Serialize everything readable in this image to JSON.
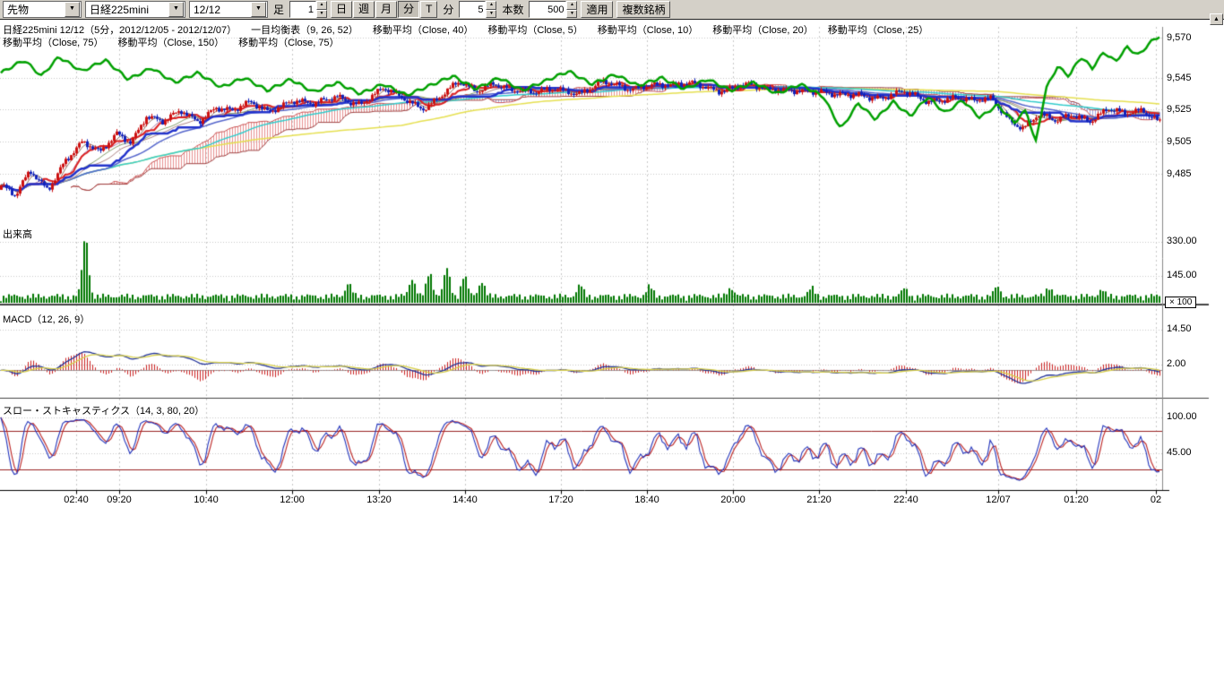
{
  "toolbar": {
    "instrument_type": "先物",
    "instrument": "日経225mini",
    "date": "12/12",
    "period_label": "足",
    "period_value": "1",
    "period_units": [
      "日",
      "週",
      "月",
      "分",
      "T"
    ],
    "active_unit": "分",
    "minute_label": "分",
    "minute_value": "5",
    "bars_label": "本数",
    "bars_value": "500",
    "apply_label": "適用",
    "multi_symbol_label": "複数銘柄"
  },
  "icons": {
    "dropdown": "▼",
    "spin_up": "▲",
    "spin_down": "▼",
    "scroll_up": "▲"
  },
  "legend": {
    "row1": [
      "日経225mini 12/12（5分，2012/12/05 - 2012/12/07）",
      "一目均衡表（9, 26, 52）",
      "移動平均（Close, 40）",
      "移動平均（Close, 5）",
      "移動平均（Close, 10）",
      "移動平均（Close, 20）",
      "移動平均（Close, 25）"
    ],
    "row2": [
      "移動平均（Close, 75）",
      "移動平均（Close, 150）",
      "移動平均（Close, 75）"
    ]
  },
  "panes": {
    "volume_label": "出来高",
    "macd_label": "MACD（12, 26, 9）",
    "stoch_label": "スロー・ストキャスティクス（14, 3, 80, 20）",
    "volume_multiplier": "× 100"
  },
  "axes": {
    "price": [
      "9,570",
      "9,545",
      "9,525",
      "9,505",
      "9,485"
    ],
    "volume": [
      "330.00",
      "145.00"
    ],
    "macd": [
      "14.50",
      "2.00"
    ],
    "stoch": [
      "100.00",
      "45.00"
    ],
    "time": [
      "02:40",
      "09:20",
      "10:40",
      "12:00",
      "13:20",
      "14:40",
      "17:20",
      "18:40",
      "20:00",
      "21:20",
      "22:40",
      "12/07",
      "01:20",
      "02"
    ]
  },
  "chart_data": {
    "type": "candlestick+indicators",
    "title": "日経225mini 12/12（5分，2012/12/05 - 2012/12/07）",
    "bars": 432,
    "price_axis_values": [
      9570,
      9545,
      9525,
      9505,
      9485
    ],
    "volume_axis_values": [
      330,
      145
    ],
    "macd_axis_values": [
      14.5,
      2.0
    ],
    "stoch_axis_values": [
      100,
      45
    ],
    "stoch_ref_lines": [
      80,
      20
    ],
    "indicators": {
      "ichimoku": [
        9,
        26,
        52
      ],
      "sma": [
        5,
        10,
        20,
        25,
        40,
        75,
        150
      ],
      "macd": [
        12,
        26,
        9
      ],
      "slow_stochastics": [
        14,
        3,
        80,
        20
      ]
    },
    "wick": 1.6,
    "wiggle": [
      [
        2.7,
        0.9
      ],
      [
        0.91,
        1.2
      ],
      [
        0.23,
        1.6
      ]
    ],
    "close_keyframes": [
      [
        0,
        9478
      ],
      [
        0.012,
        9470
      ],
      [
        0.025,
        9486
      ],
      [
        0.04,
        9476
      ],
      [
        0.055,
        9494
      ],
      [
        0.07,
        9504
      ],
      [
        0.085,
        9497
      ],
      [
        0.1,
        9511
      ],
      [
        0.112,
        9506
      ],
      [
        0.125,
        9521
      ],
      [
        0.14,
        9516
      ],
      [
        0.155,
        9524
      ],
      [
        0.17,
        9519
      ],
      [
        0.185,
        9527
      ],
      [
        0.2,
        9523
      ],
      [
        0.215,
        9529
      ],
      [
        0.23,
        9525
      ],
      [
        0.25,
        9531
      ],
      [
        0.27,
        9527
      ],
      [
        0.29,
        9534
      ],
      [
        0.31,
        9529
      ],
      [
        0.33,
        9537
      ],
      [
        0.35,
        9531
      ],
      [
        0.365,
        9527
      ],
      [
        0.38,
        9534
      ],
      [
        0.395,
        9541
      ],
      [
        0.41,
        9536
      ],
      [
        0.425,
        9543
      ],
      [
        0.44,
        9538
      ],
      [
        0.46,
        9534
      ],
      [
        0.48,
        9539
      ],
      [
        0.5,
        9536
      ],
      [
        0.52,
        9541
      ],
      [
        0.54,
        9538
      ],
      [
        0.56,
        9542
      ],
      [
        0.58,
        9539
      ],
      [
        0.6,
        9541
      ],
      [
        0.62,
        9538
      ],
      [
        0.64,
        9540
      ],
      [
        0.66,
        9537
      ],
      [
        0.68,
        9539
      ],
      [
        0.7,
        9536
      ],
      [
        0.72,
        9533
      ],
      [
        0.74,
        9536
      ],
      [
        0.76,
        9532
      ],
      [
        0.78,
        9535
      ],
      [
        0.8,
        9531
      ],
      [
        0.82,
        9533
      ],
      [
        0.84,
        9529
      ],
      [
        0.855,
        9532
      ],
      [
        0.87,
        9520
      ],
      [
        0.882,
        9514
      ],
      [
        0.895,
        9521
      ],
      [
        0.91,
        9517
      ],
      [
        0.925,
        9523
      ],
      [
        0.94,
        9519
      ],
      [
        0.955,
        9525
      ],
      [
        0.97,
        9521
      ],
      [
        0.985,
        9525
      ],
      [
        1,
        9519
      ]
    ],
    "overlay_green_keyframes": [
      [
        0,
        9548
      ],
      [
        0.02,
        9556
      ],
      [
        0.035,
        9546
      ],
      [
        0.05,
        9558
      ],
      [
        0.07,
        9549
      ],
      [
        0.09,
        9556
      ],
      [
        0.11,
        9544
      ],
      [
        0.13,
        9551
      ],
      [
        0.15,
        9542
      ],
      [
        0.17,
        9548
      ],
      [
        0.19,
        9539
      ],
      [
        0.21,
        9545
      ],
      [
        0.23,
        9537
      ],
      [
        0.25,
        9544
      ],
      [
        0.27,
        9536
      ],
      [
        0.29,
        9542
      ],
      [
        0.31,
        9535
      ],
      [
        0.33,
        9541
      ],
      [
        0.35,
        9534
      ],
      [
        0.37,
        9540
      ],
      [
        0.39,
        9546
      ],
      [
        0.41,
        9538
      ],
      [
        0.43,
        9545
      ],
      [
        0.45,
        9537
      ],
      [
        0.47,
        9543
      ],
      [
        0.49,
        9549
      ],
      [
        0.51,
        9541
      ],
      [
        0.53,
        9547
      ],
      [
        0.55,
        9540
      ],
      [
        0.57,
        9545
      ],
      [
        0.59,
        9538
      ],
      [
        0.61,
        9544
      ],
      [
        0.63,
        9537
      ],
      [
        0.65,
        9542
      ],
      [
        0.67,
        9535
      ],
      [
        0.69,
        9541
      ],
      [
        0.71,
        9533
      ],
      [
        0.725,
        9513
      ],
      [
        0.74,
        9529
      ],
      [
        0.755,
        9519
      ],
      [
        0.77,
        9530
      ],
      [
        0.785,
        9521
      ],
      [
        0.8,
        9533
      ],
      [
        0.815,
        9523
      ],
      [
        0.83,
        9531
      ],
      [
        0.845,
        9520
      ],
      [
        0.86,
        9528
      ],
      [
        0.875,
        9517
      ],
      [
        0.885,
        9525
      ],
      [
        0.893,
        9504
      ],
      [
        0.902,
        9538
      ],
      [
        0.912,
        9552
      ],
      [
        0.922,
        9546
      ],
      [
        0.932,
        9558
      ],
      [
        0.942,
        9551
      ],
      [
        0.952,
        9561
      ],
      [
        0.962,
        9555
      ],
      [
        0.972,
        9564
      ],
      [
        0.982,
        9559
      ],
      [
        0.992,
        9567
      ],
      [
        1,
        9571
      ]
    ],
    "volume_base": {
      "const": 8,
      "comp": [
        [
          1.7,
          24
        ],
        [
          0.37,
          18
        ]
      ]
    },
    "volume_spikes": [
      [
        0.073,
        320
      ],
      [
        0.3,
        70
      ],
      [
        0.355,
        100
      ],
      [
        0.37,
        130
      ],
      [
        0.385,
        150
      ],
      [
        0.4,
        110
      ],
      [
        0.415,
        85
      ],
      [
        0.5,
        60
      ],
      [
        0.56,
        55
      ],
      [
        0.63,
        50
      ],
      [
        0.7,
        45
      ],
      [
        0.78,
        40
      ],
      [
        0.86,
        50
      ],
      [
        0.905,
        55
      ],
      [
        0.95,
        35
      ]
    ],
    "colors": {
      "up": "#cc1111",
      "down": "#1122bb",
      "volume": "#007700",
      "macd": "#223399",
      "signal": "#d8d048",
      "hist": "#cc2222",
      "stoch_k": "#2233bb",
      "stoch_d": "#bb2222",
      "overlay": "#00a000",
      "ma150": "#e6e050",
      "ma75": "#33cccc",
      "ma40": "#5566cc",
      "tenkan": "#dd2222",
      "kijun": "#2233cc",
      "cloud_up": "rgba(215,70,70,0.6)",
      "cloud_down": "rgba(90,110,215,0.6)",
      "cloud_edge_a": "#cc5555",
      "cloud_edge_b": "#a04444",
      "ref": "#992222",
      "grid": "#c8c8c8"
    }
  }
}
